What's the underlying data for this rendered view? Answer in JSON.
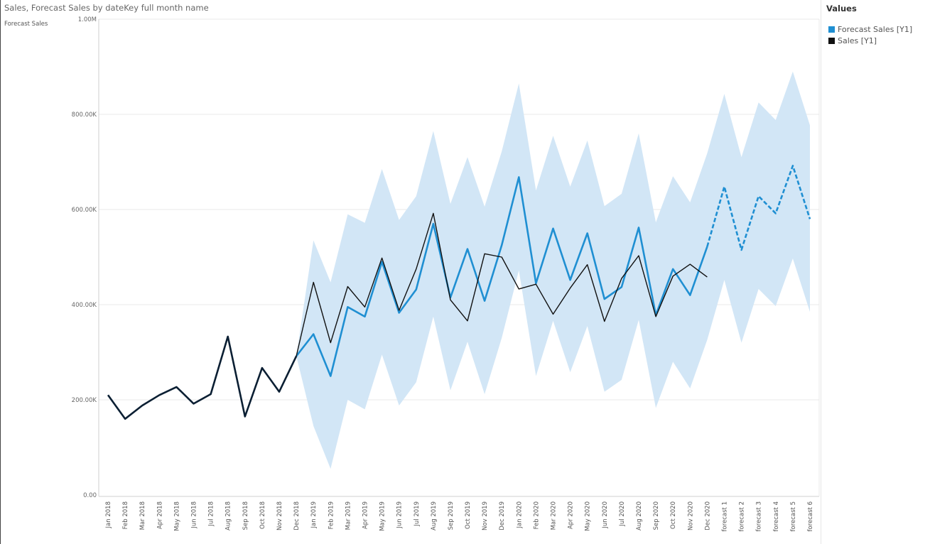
{
  "header": {
    "title": "Sales, Forecast Sales by dateKey full month name"
  },
  "legend": {
    "title": "Values",
    "items": [
      {
        "label": "Forecast Sales [Y1]",
        "color": "#1f8fd2"
      },
      {
        "label": "Sales [Y1]",
        "color": "#111111"
      }
    ]
  },
  "chart_data": {
    "type": "line",
    "title": "Sales, Forecast Sales by dateKey full month name",
    "ylabel": "Forecast Sales",
    "xlabel": "",
    "ylim": [
      0,
      1000000
    ],
    "y_ticks": [
      "0.00",
      "200.00K",
      "400.00K",
      "600.00K",
      "800.00K",
      "1.00M"
    ],
    "grid": true,
    "legend_position": "right",
    "categories": [
      "Jan 2018",
      "Feb 2018",
      "Mar 2018",
      "Apr 2018",
      "May 2018",
      "Jun 2018",
      "Jul 2018",
      "Aug 2018",
      "Sep 2018",
      "Oct 2018",
      "Nov 2018",
      "Dec 2018",
      "Jan 2019",
      "Feb 2019",
      "Mar 2019",
      "Apr 2019",
      "May 2019",
      "Jun 2019",
      "Jul 2019",
      "Aug 2019",
      "Sep 2019",
      "Oct 2019",
      "Nov 2019",
      "Dec 2019",
      "Jan 2020",
      "Feb 2020",
      "Mar 2020",
      "Apr 2020",
      "May 2020",
      "Jun 2020",
      "Jul 2020",
      "Aug 2020",
      "Sep 2020",
      "Oct 2020",
      "Nov 2020",
      "Dec 2020",
      "forecast 1",
      "forecast 2",
      "forecast 3",
      "forecast 4",
      "forecast 5",
      "forecast 6"
    ],
    "series": [
      {
        "name": "Sales [Y1]",
        "color": "#111111",
        "values": [
          210000,
          160000,
          188000,
          210000,
          227000,
          192000,
          212000,
          333000,
          165000,
          267000,
          217000,
          292000,
          447000,
          320000,
          438000,
          395000,
          498000,
          388000,
          475000,
          592000,
          410000,
          366000,
          507000,
          500000,
          433000,
          443000,
          380000,
          435000,
          484000,
          365000,
          455000,
          503000,
          375000,
          460000,
          485000,
          458000,
          null,
          null,
          null,
          null,
          null,
          null
        ]
      },
      {
        "name": "Forecast Sales [Y1]",
        "color": "#1f8fd2",
        "values": [
          null,
          null,
          null,
          null,
          null,
          null,
          null,
          null,
          null,
          null,
          null,
          292000,
          338000,
          250000,
          395000,
          375000,
          490000,
          383000,
          432000,
          570000,
          415000,
          517000,
          408000,
          525000,
          668000,
          445000,
          560000,
          452000,
          550000,
          412000,
          437000,
          562000,
          378000,
          475000,
          420000,
          522000,
          648000,
          515000,
          628000,
          592000,
          692000,
          580000
        ],
        "forecast_start": "forecast 1"
      }
    ],
    "confidence_band": {
      "color": "#d2e6f6",
      "upper": [
        null,
        null,
        null,
        null,
        null,
        null,
        null,
        null,
        null,
        null,
        null,
        292000,
        535000,
        447000,
        590000,
        572000,
        685000,
        578000,
        628000,
        765000,
        612000,
        710000,
        606000,
        722000,
        865000,
        640000,
        755000,
        648000,
        745000,
        607000,
        633000,
        760000,
        573000,
        670000,
        615000,
        718000,
        843000,
        710000,
        825000,
        788000,
        890000,
        777000
      ],
      "lower": [
        null,
        null,
        null,
        null,
        null,
        null,
        null,
        null,
        null,
        null,
        null,
        292000,
        145000,
        55000,
        200000,
        180000,
        295000,
        188000,
        237000,
        375000,
        220000,
        322000,
        212000,
        330000,
        472000,
        250000,
        366000,
        258000,
        355000,
        217000,
        242000,
        368000,
        183000,
        280000,
        224000,
        326000,
        452000,
        320000,
        433000,
        397000,
        497000,
        385000
      ]
    }
  }
}
